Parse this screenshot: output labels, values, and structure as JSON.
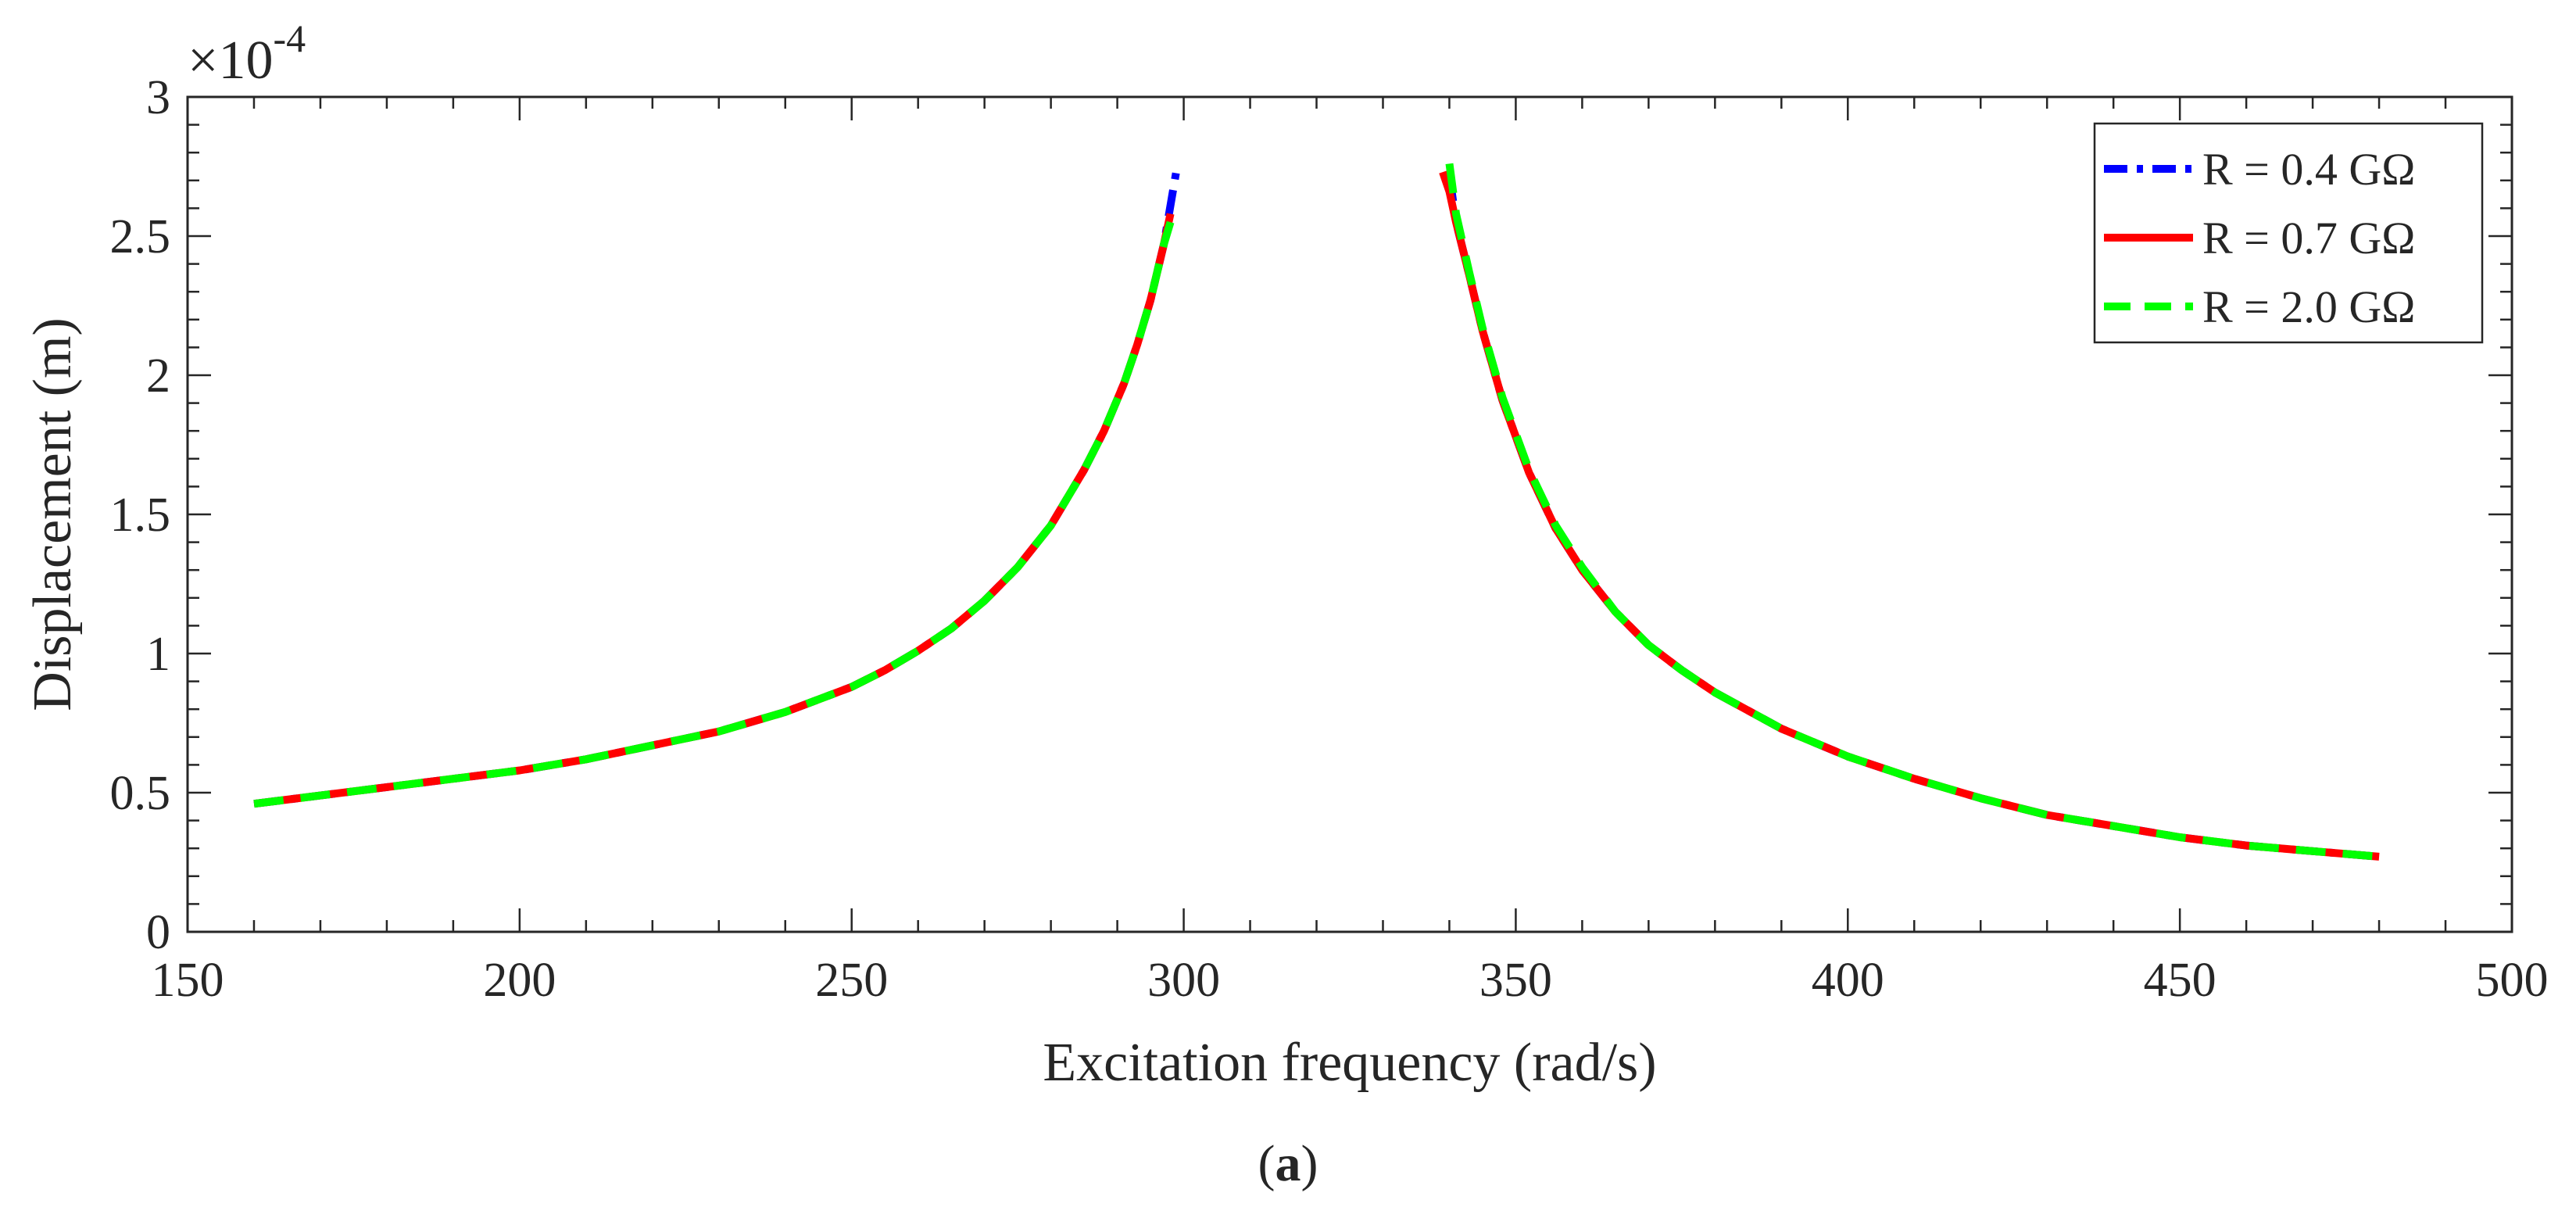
{
  "chart_data": {
    "type": "line",
    "title": "",
    "xlabel": "Excitation frequency (rad/s)",
    "ylabel": "Displacement (m)",
    "exponent_label": {
      "base": "×10",
      "power": "-4"
    },
    "xlim": [
      150,
      500
    ],
    "ylim": [
      0,
      3
    ],
    "x_ticks": [
      150,
      200,
      250,
      300,
      350,
      400,
      450,
      500
    ],
    "x_tick_labels": [
      "150",
      "200",
      "250",
      "300",
      "350",
      "400",
      "450",
      "500"
    ],
    "y_ticks": [
      0,
      0.5,
      1,
      1.5,
      2,
      2.5,
      3
    ],
    "y_tick_labels": [
      "0",
      "0.5",
      "1",
      "1.5",
      "2",
      "2.5",
      "3"
    ],
    "grid": false,
    "legend_position": "top-right",
    "series": [
      {
        "name": "R = 0.4 GΩ",
        "color": "#0000ff",
        "style": "dash-dot",
        "segments": [
          {
            "x": [
              160,
              170,
              180,
              190,
              200,
              210,
              220,
              230,
              240,
              250,
              255,
              260,
              265,
              270,
              275,
              280,
              285,
              288,
              291,
              293,
              295,
              297,
              299
            ],
            "y": [
              0.46,
              0.49,
              0.52,
              0.55,
              0.58,
              0.62,
              0.67,
              0.72,
              0.79,
              0.88,
              0.94,
              1.01,
              1.09,
              1.19,
              1.31,
              1.46,
              1.66,
              1.8,
              1.97,
              2.11,
              2.27,
              2.47,
              2.75
            ]
          },
          {
            "x": [
              340,
              341,
              343,
              345,
              348,
              352,
              356,
              360,
              365,
              370,
              375,
              380,
              390,
              400,
              410,
              420,
              430,
              440,
              450,
              460,
              470,
              480
            ],
            "y": [
              2.72,
              2.55,
              2.36,
              2.16,
              1.91,
              1.65,
              1.45,
              1.3,
              1.15,
              1.03,
              0.94,
              0.86,
              0.73,
              0.63,
              0.55,
              0.48,
              0.42,
              0.38,
              0.34,
              0.31,
              0.29,
              0.27
            ]
          }
        ]
      },
      {
        "name": "R = 0.7 GΩ",
        "color": "#ff0000",
        "style": "solid",
        "segments": [
          {
            "x": [
              160,
              170,
              180,
              190,
              200,
              210,
              220,
              230,
              240,
              250,
              255,
              260,
              265,
              270,
              275,
              280,
              285,
              288,
              291,
              293,
              295,
              297,
              298
            ],
            "y": [
              0.46,
              0.49,
              0.52,
              0.55,
              0.58,
              0.62,
              0.67,
              0.72,
              0.79,
              0.88,
              0.94,
              1.01,
              1.09,
              1.19,
              1.31,
              1.46,
              1.66,
              1.8,
              1.97,
              2.11,
              2.27,
              2.47,
              2.58
            ]
          },
          {
            "x": [
              339,
              340,
              341,
              343,
              345,
              348,
              352,
              356,
              360,
              365,
              370,
              375,
              380,
              390,
              400,
              410,
              420,
              430,
              440,
              450,
              460,
              470,
              480
            ],
            "y": [
              2.73,
              2.66,
              2.55,
              2.36,
              2.16,
              1.91,
              1.65,
              1.45,
              1.3,
              1.15,
              1.03,
              0.94,
              0.86,
              0.73,
              0.63,
              0.55,
              0.48,
              0.42,
              0.38,
              0.34,
              0.31,
              0.29,
              0.27
            ]
          }
        ]
      },
      {
        "name": "R = 2.0 GΩ",
        "color": "#00ff00",
        "style": "dash",
        "segments": [
          {
            "x": [
              160,
              170,
              180,
              190,
              200,
              210,
              220,
              230,
              240,
              250,
              255,
              260,
              265,
              270,
              275,
              280,
              285,
              288,
              291,
              293,
              295,
              297,
              298
            ],
            "y": [
              0.46,
              0.49,
              0.52,
              0.55,
              0.58,
              0.62,
              0.67,
              0.72,
              0.79,
              0.88,
              0.94,
              1.01,
              1.09,
              1.19,
              1.31,
              1.46,
              1.66,
              1.8,
              1.97,
              2.11,
              2.27,
              2.47,
              2.55
            ]
          },
          {
            "x": [
              340,
              341,
              343,
              345,
              348,
              352,
              356,
              360,
              365,
              370,
              375,
              380,
              390,
              400,
              410,
              420,
              430,
              440,
              450,
              460,
              470,
              480
            ],
            "y": [
              2.76,
              2.58,
              2.37,
              2.17,
              1.92,
              1.66,
              1.46,
              1.31,
              1.15,
              1.03,
              0.94,
              0.86,
              0.73,
              0.63,
              0.55,
              0.48,
              0.42,
              0.38,
              0.34,
              0.31,
              0.29,
              0.27
            ]
          }
        ]
      }
    ]
  },
  "caption": {
    "open": "(",
    "letter": "a",
    "close": ")"
  }
}
